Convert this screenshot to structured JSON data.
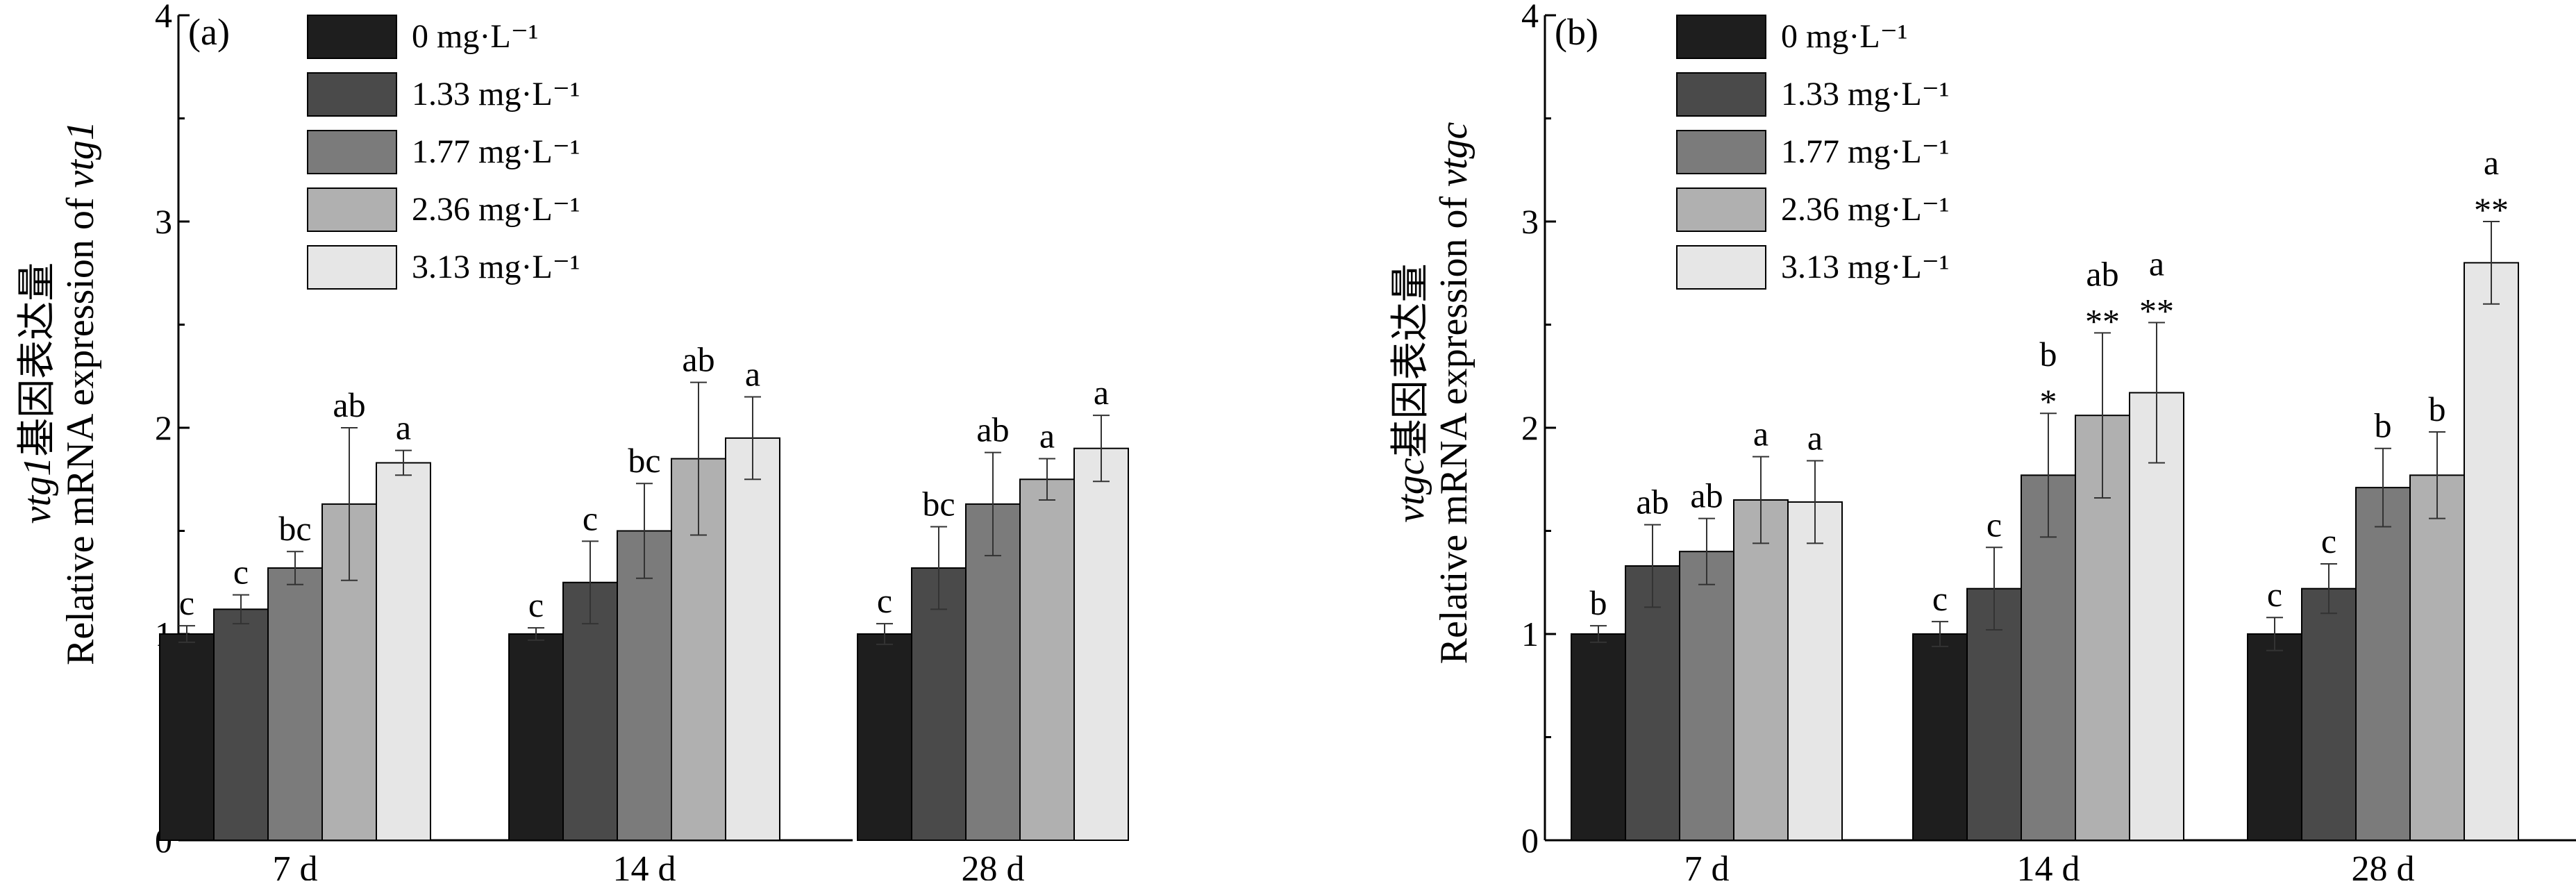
{
  "figure": {
    "legend": [
      "0 mg·L⁻¹",
      "1.33 mg·L⁻¹",
      "1.77 mg·L⁻¹",
      "2.36 mg·L⁻¹",
      "3.13 mg·L⁻¹"
    ],
    "series_colors": [
      "#1e1e1e",
      "#4a4a4a",
      "#7b7b7b",
      "#b0b0b0",
      "#e6e6e6"
    ]
  },
  "chart_data": [
    {
      "type": "bar",
      "panel_label": "(a)",
      "ylabel": {
        "gene": "vtg1",
        "cn": "基因表达量",
        "en": "Relative mRNA expression of ",
        "gene_en": "vtg1"
      },
      "ylim": [
        0,
        4
      ],
      "yticks": [
        0,
        1,
        2,
        3,
        4
      ],
      "categories": [
        "7 d",
        "14 d",
        "28 d"
      ],
      "series": [
        {
          "name": "0 mg·L⁻¹",
          "values": [
            1.0,
            1.0,
            1.0
          ],
          "errors": [
            0.04,
            0.03,
            0.05
          ],
          "labels": [
            "c",
            "c",
            "c"
          ],
          "stars": [
            "",
            "",
            ""
          ]
        },
        {
          "name": "1.33 mg·L⁻¹",
          "values": [
            1.12,
            1.25,
            1.32
          ],
          "errors": [
            0.07,
            0.2,
            0.2
          ],
          "labels": [
            "c",
            "c",
            "bc"
          ],
          "stars": [
            "",
            "",
            ""
          ]
        },
        {
          "name": "1.77 mg·L⁻¹",
          "values": [
            1.32,
            1.5,
            1.63
          ],
          "errors": [
            0.08,
            0.23,
            0.25
          ],
          "labels": [
            "bc",
            "bc",
            "ab"
          ],
          "stars": [
            "",
            "",
            ""
          ]
        },
        {
          "name": "2.36 mg·L⁻¹",
          "values": [
            1.63,
            1.85,
            1.75
          ],
          "errors": [
            0.37,
            0.37,
            0.1
          ],
          "labels": [
            "ab",
            "ab",
            "a"
          ],
          "stars": [
            "",
            "",
            ""
          ]
        },
        {
          "name": "3.13 mg·L⁻¹",
          "values": [
            1.83,
            1.95,
            1.9
          ],
          "errors": [
            0.06,
            0.2,
            0.16
          ],
          "labels": [
            "a",
            "a",
            "a"
          ],
          "stars": [
            "",
            "",
            ""
          ]
        }
      ]
    },
    {
      "type": "bar",
      "panel_label": "(b)",
      "ylabel": {
        "gene": "vtgc",
        "cn": "基因表达量",
        "en": "Relative mRNA expression of ",
        "gene_en": "vtgc"
      },
      "ylim": [
        0,
        4
      ],
      "yticks": [
        0,
        1,
        2,
        3,
        4
      ],
      "categories": [
        "7 d",
        "14 d",
        "28 d"
      ],
      "series": [
        {
          "name": "0 mg·L⁻¹",
          "values": [
            1.0,
            1.0,
            1.0
          ],
          "errors": [
            0.04,
            0.06,
            0.08
          ],
          "labels": [
            "b",
            "c",
            "c"
          ],
          "stars": [
            "",
            "",
            ""
          ]
        },
        {
          "name": "1.33 mg·L⁻¹",
          "values": [
            1.33,
            1.22,
            1.22
          ],
          "errors": [
            0.2,
            0.2,
            0.12
          ],
          "labels": [
            "ab",
            "c",
            "c"
          ],
          "stars": [
            "",
            "",
            ""
          ]
        },
        {
          "name": "1.77 mg·L⁻¹",
          "values": [
            1.4,
            1.77,
            1.71
          ],
          "errors": [
            0.16,
            0.3,
            0.19
          ],
          "labels": [
            "ab",
            "b",
            "b"
          ],
          "stars": [
            "",
            "*",
            ""
          ]
        },
        {
          "name": "2.36 mg·L⁻¹",
          "values": [
            1.65,
            2.06,
            1.77
          ],
          "errors": [
            0.21,
            0.4,
            0.21
          ],
          "labels": [
            "a",
            "ab",
            "b"
          ],
          "stars": [
            "",
            "**",
            ""
          ]
        },
        {
          "name": "3.13 mg·L⁻¹",
          "values": [
            1.64,
            2.17,
            2.8
          ],
          "errors": [
            0.2,
            0.34,
            0.2
          ],
          "labels": [
            "a",
            "a",
            "a"
          ],
          "stars": [
            "",
            "**",
            "**"
          ]
        }
      ]
    }
  ]
}
